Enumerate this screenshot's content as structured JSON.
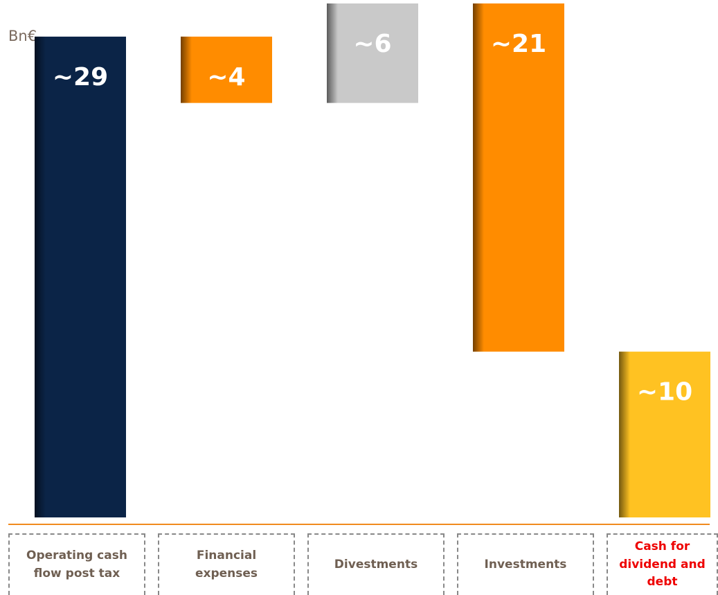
{
  "chart_data": {
    "type": "waterfall",
    "unit": "Bn€",
    "categories": [
      "Operating cash flow post tax",
      "Financial expenses",
      "Divestments",
      "Investments",
      "Cash for dividend and debt"
    ],
    "values": [
      29,
      -4,
      6,
      -21,
      10
    ],
    "value_labels": [
      "~29",
      "~4",
      "~6",
      "~21",
      "~10"
    ],
    "measure": [
      "absolute",
      "relative",
      "relative",
      "relative",
      "total"
    ],
    "colors": [
      "#0b2447",
      "#ff8c00",
      "#c9c9c9",
      "#ff8c00",
      "#ffc222"
    ],
    "label_colors": [
      "#6f5f52",
      "#6f5f52",
      "#6f5f52",
      "#6f5f52",
      "#ee0000"
    ]
  }
}
